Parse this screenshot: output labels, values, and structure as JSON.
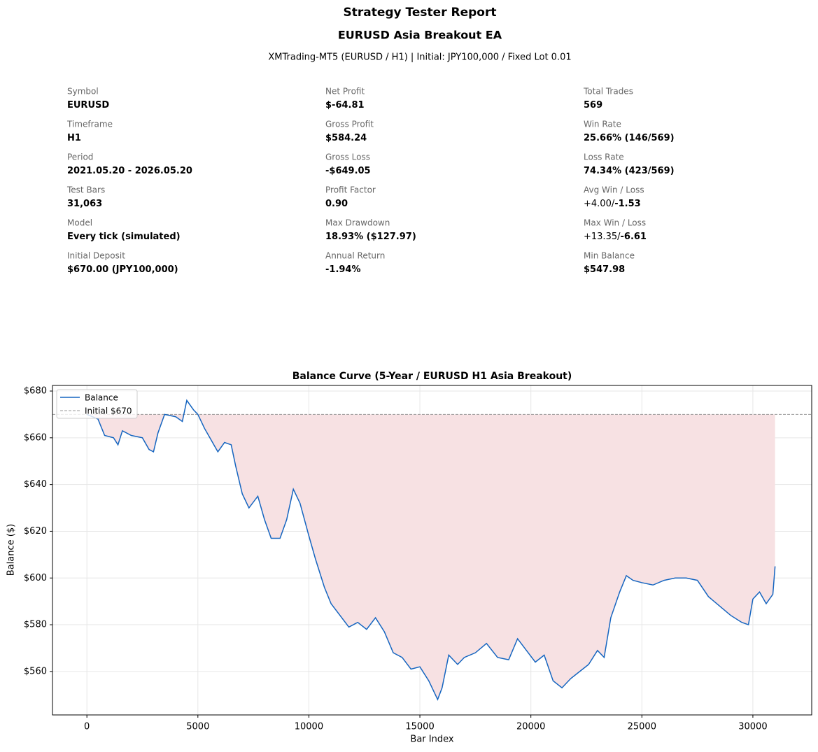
{
  "header": {
    "title": "Strategy Tester Report",
    "subtitle": "EURUSD Asia Breakout EA",
    "info": "XMTrading-MT5 (EURUSD / H1)  |  Initial: JPY100,000 / Fixed Lot 0.01"
  },
  "stats": [
    [
      {
        "label": "Symbol",
        "value": "EURUSD"
      },
      {
        "label": "Timeframe",
        "value": "H1"
      },
      {
        "label": "Period",
        "value": "2021.05.20 - 2026.05.20"
      },
      {
        "label": "Test Bars",
        "value": "31,063"
      },
      {
        "label": "Model",
        "value": "Every tick (simulated)"
      },
      {
        "label": "Initial Deposit",
        "value": "$670.00 (JPY100,000)"
      }
    ],
    [
      {
        "label": "Net Profit",
        "value": "$-64.81"
      },
      {
        "label": "Gross Profit",
        "value": "$584.24"
      },
      {
        "label": "Gross Loss",
        "value": "-$649.05"
      },
      {
        "label": "Profit Factor",
        "value": "0.90"
      },
      {
        "label": "Max Drawdown",
        "value": "18.93% ($127.97)"
      },
      {
        "label": "Annual Return",
        "value": "-1.94%"
      }
    ],
    [
      {
        "label": "Total Trades",
        "value": "569"
      },
      {
        "label": "Win Rate",
        "value": "25.66% (146/569)"
      },
      {
        "label": "Loss Rate",
        "value": "74.34% (423/569)"
      },
      {
        "label": "Avg Win / Loss",
        "value_plain": "+4.00/",
        "value": "-1.53"
      },
      {
        "label": "Max Win / Loss",
        "value_plain": "+13.35/",
        "value": "-6.61"
      },
      {
        "label": "Min Balance",
        "value": "$547.98"
      }
    ]
  ],
  "chart_data": {
    "type": "line",
    "title": "Balance Curve (5-Year / EURUSD H1 Asia Breakout)",
    "xlabel": "Bar Index",
    "ylabel": "Balance ($)",
    "x": [
      0,
      500,
      800,
      1200,
      1400,
      1600,
      2000,
      2500,
      2800,
      3000,
      3200,
      3500,
      4000,
      4300,
      4500,
      4800,
      5000,
      5300,
      5600,
      5900,
      6200,
      6500,
      6700,
      7000,
      7300,
      7700,
      8000,
      8300,
      8700,
      9000,
      9300,
      9600,
      10000,
      10300,
      10700,
      11000,
      11400,
      11800,
      12200,
      12600,
      13000,
      13400,
      13800,
      14200,
      14600,
      15000,
      15400,
      15800,
      16000,
      16300,
      16700,
      17000,
      17500,
      18000,
      18500,
      19000,
      19400,
      19800,
      20200,
      20600,
      21000,
      21400,
      21800,
      22200,
      22600,
      23000,
      23300,
      23600,
      24000,
      24300,
      24600,
      25000,
      25500,
      26000,
      26500,
      27000,
      27500,
      28000,
      28500,
      29000,
      29500,
      29800,
      30000,
      30300,
      30600,
      30900,
      31000
    ],
    "series": [
      {
        "name": "Balance",
        "color": "#1565c0",
        "values": [
          670,
          668,
          661,
          660,
          657,
          663,
          661,
          660,
          655,
          654,
          662,
          670,
          669,
          667,
          676,
          672,
          670,
          664,
          659,
          654,
          658,
          657,
          648,
          636,
          630,
          635,
          625,
          617,
          617,
          625,
          638,
          632,
          618,
          608,
          596,
          589,
          584,
          579,
          581,
          578,
          583,
          577,
          568,
          566,
          561,
          562,
          556,
          548,
          553,
          567,
          563,
          566,
          568,
          572,
          566,
          565,
          574,
          569,
          564,
          567,
          556,
          553,
          557,
          560,
          563,
          569,
          566,
          583,
          594,
          601,
          599,
          598,
          597,
          599,
          600,
          600,
          599,
          592,
          588,
          584,
          581,
          580,
          591,
          594,
          589,
          593,
          605
        ]
      }
    ],
    "hline": {
      "value": 670,
      "label": "Initial $670",
      "color": "#999999"
    },
    "fill_below_color": "#f7e1e3",
    "xlim": [
      -1550,
      32650
    ],
    "ylim": [
      541.4,
      682.4
    ],
    "xticks": [
      0,
      5000,
      10000,
      15000,
      20000,
      25000,
      30000
    ],
    "yticks": [
      {
        "value": 560,
        "label": "$560"
      },
      {
        "value": 580,
        "label": "$580"
      },
      {
        "value": 600,
        "label": "$600"
      },
      {
        "value": 620,
        "label": "$620"
      },
      {
        "value": 640,
        "label": "$640"
      },
      {
        "value": 660,
        "label": "$660"
      },
      {
        "value": 680,
        "label": "$680"
      }
    ],
    "grid": true,
    "legend": "upper left"
  }
}
